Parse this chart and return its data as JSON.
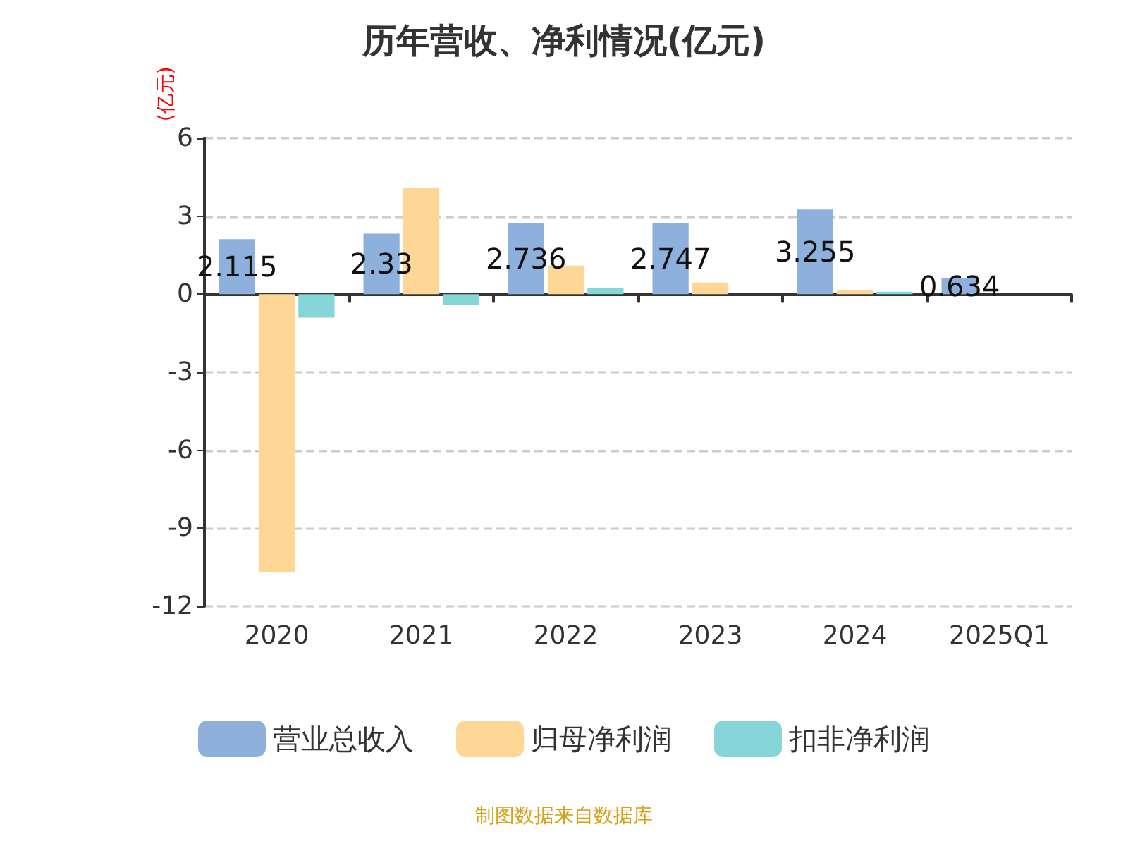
{
  "chart_data": {
    "type": "bar",
    "title": "历年营收、净利情况(亿元)",
    "ylabel": "(亿元)",
    "categories": [
      "2020",
      "2021",
      "2022",
      "2023",
      "2024",
      "2025Q1"
    ],
    "series": [
      {
        "name": "营业总收入",
        "color": "#8eb0dc",
        "values": [
          2.115,
          2.33,
          2.736,
          2.747,
          3.255,
          0.634
        ],
        "value_labels": [
          "2.115",
          "2.33",
          "2.736",
          "2.747",
          "3.255",
          "0.634"
        ]
      },
      {
        "name": "归母净利润",
        "color": "#fed797",
        "values": [
          -10.7,
          4.1,
          1.1,
          0.45,
          0.15,
          null
        ]
      },
      {
        "name": "扣非净利润",
        "color": "#86d5d9",
        "values": [
          -0.9,
          -0.4,
          0.25,
          0,
          0.1,
          null
        ]
      }
    ],
    "ylim": [
      -12,
      6
    ],
    "yticks": [
      -12,
      -9,
      -6,
      -3,
      0,
      3,
      6
    ],
    "grid": "y",
    "legend": "bottom",
    "annotations": [
      "制图数据来自数据库"
    ]
  }
}
